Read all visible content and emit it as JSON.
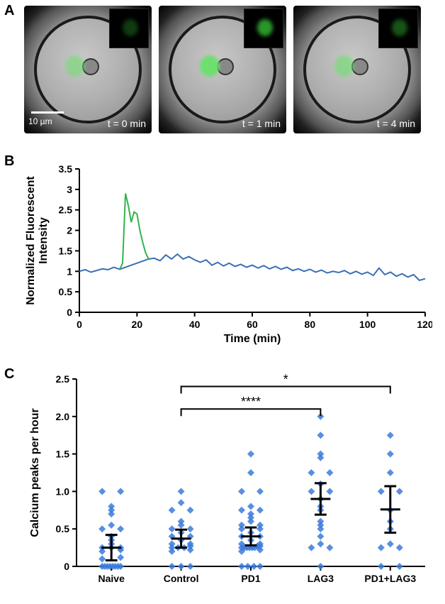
{
  "labels": {
    "A": "A",
    "B": "B",
    "C": "C"
  },
  "panelA": {
    "scale_label": "10 µm",
    "frames": [
      {
        "time_label": "t = 0 min",
        "green_opacity": 0.55,
        "inset_opacity": 0.35
      },
      {
        "time_label": "t = 1 min",
        "green_opacity": 0.95,
        "inset_opacity": 0.9
      },
      {
        "time_label": "t = 4 min",
        "green_opacity": 0.6,
        "inset_opacity": 0.5
      }
    ],
    "green_color": "#6be06b",
    "inset_green": "#2fa82f"
  },
  "panelB": {
    "type": "line",
    "xlabel": "Time (min)",
    "ylabel": "Normalized Fluorescent\nIntensity",
    "xlim": [
      0,
      120
    ],
    "ylim": [
      0,
      3.5
    ],
    "xticks": [
      0,
      20,
      40,
      60,
      80,
      100,
      120
    ],
    "yticks": [
      0,
      0.5,
      1,
      1.5,
      2,
      2.5,
      3,
      3.5
    ],
    "baseline_color": "#3b6fb6",
    "peak_color": "#31b44a",
    "line_width": 2,
    "background_color": "#ffffff",
    "baseline": [
      [
        0,
        1.0
      ],
      [
        2,
        1.04
      ],
      [
        4,
        0.98
      ],
      [
        6,
        1.02
      ],
      [
        8,
        1.06
      ],
      [
        10,
        1.04
      ],
      [
        12,
        1.1
      ],
      [
        14,
        1.05
      ],
      [
        24,
        1.3
      ],
      [
        26,
        1.32
      ],
      [
        28,
        1.26
      ],
      [
        30,
        1.4
      ],
      [
        32,
        1.3
      ],
      [
        34,
        1.42
      ],
      [
        36,
        1.3
      ],
      [
        38,
        1.36
      ],
      [
        40,
        1.28
      ],
      [
        42,
        1.22
      ],
      [
        44,
        1.28
      ],
      [
        46,
        1.15
      ],
      [
        48,
        1.22
      ],
      [
        50,
        1.13
      ],
      [
        52,
        1.2
      ],
      [
        54,
        1.12
      ],
      [
        56,
        1.17
      ],
      [
        58,
        1.1
      ],
      [
        60,
        1.15
      ],
      [
        62,
        1.08
      ],
      [
        64,
        1.14
      ],
      [
        66,
        1.06
      ],
      [
        68,
        1.12
      ],
      [
        70,
        1.05
      ],
      [
        72,
        1.1
      ],
      [
        74,
        1.02
      ],
      [
        76,
        1.06
      ],
      [
        78,
        1.0
      ],
      [
        80,
        1.05
      ],
      [
        82,
        0.98
      ],
      [
        84,
        1.03
      ],
      [
        86,
        0.96
      ],
      [
        88,
        1.0
      ],
      [
        90,
        0.97
      ],
      [
        92,
        1.02
      ],
      [
        94,
        0.94
      ],
      [
        96,
        1.0
      ],
      [
        98,
        0.93
      ],
      [
        100,
        0.98
      ],
      [
        102,
        0.9
      ],
      [
        104,
        1.08
      ],
      [
        106,
        0.92
      ],
      [
        108,
        0.98
      ],
      [
        110,
        0.88
      ],
      [
        112,
        0.94
      ],
      [
        114,
        0.86
      ],
      [
        116,
        0.92
      ],
      [
        118,
        0.78
      ],
      [
        120,
        0.82
      ]
    ],
    "peak": [
      [
        14,
        1.05
      ],
      [
        15,
        1.2
      ],
      [
        16,
        2.9
      ],
      [
        17,
        2.6
      ],
      [
        18,
        2.2
      ],
      [
        19,
        2.45
      ],
      [
        20,
        2.4
      ],
      [
        21,
        2.0
      ],
      [
        22,
        1.7
      ],
      [
        23,
        1.45
      ],
      [
        24,
        1.3
      ]
    ]
  },
  "panelC": {
    "type": "scatter-strip",
    "xlabel_categories": [
      "Naive",
      "Control",
      "PD1",
      "LAG3",
      "PD1+LAG3"
    ],
    "ylabel": "Calcium peaks per hour",
    "ylim": [
      0,
      2.5
    ],
    "yticks": [
      0,
      0.5,
      1.0,
      1.5,
      2.0,
      2.5
    ],
    "point_color": "#3a7bdc",
    "error_color": "#000000",
    "point_size": 5,
    "err_cap_width": 28,
    "significance": [
      {
        "from": 1,
        "to": 3,
        "label": "****",
        "y": 2.1
      },
      {
        "from": 1,
        "to": 4,
        "label": "*",
        "y": 2.4
      }
    ],
    "series": [
      {
        "mean": 0.25,
        "err": 0.17,
        "points": [
          0.0,
          0.0,
          0.0,
          0.0,
          0.0,
          0.0,
          0.0,
          0.0,
          0.1,
          0.12,
          0.2,
          0.22,
          0.25,
          0.25,
          0.25,
          0.3,
          0.35,
          0.4,
          0.5,
          0.5,
          0.55,
          0.7,
          0.75,
          0.8,
          1.0,
          1.0
        ]
      },
      {
        "mean": 0.37,
        "err": 0.12,
        "points": [
          0.0,
          0.0,
          0.0,
          0.2,
          0.22,
          0.25,
          0.25,
          0.25,
          0.27,
          0.3,
          0.3,
          0.35,
          0.4,
          0.4,
          0.45,
          0.5,
          0.5,
          0.55,
          0.6,
          0.75,
          0.75,
          0.85,
          1.0
        ]
      },
      {
        "mean": 0.4,
        "err": 0.12,
        "points": [
          0.0,
          0.0,
          0.0,
          0.0,
          0.2,
          0.22,
          0.25,
          0.25,
          0.25,
          0.25,
          0.25,
          0.25,
          0.27,
          0.27,
          0.3,
          0.3,
          0.35,
          0.4,
          0.4,
          0.45,
          0.5,
          0.5,
          0.55,
          0.55,
          0.6,
          0.65,
          0.7,
          0.75,
          0.75,
          0.8,
          1.0,
          1.0,
          1.25,
          1.5
        ]
      },
      {
        "mean": 0.9,
        "err": 0.21,
        "points": [
          0.0,
          0.25,
          0.25,
          0.3,
          0.4,
          0.5,
          0.55,
          0.6,
          0.75,
          0.8,
          0.9,
          1.0,
          1.0,
          1.1,
          1.25,
          1.25,
          1.45,
          1.5,
          1.75,
          2.0
        ]
      },
      {
        "mean": 0.76,
        "err": 0.31,
        "points": [
          0.0,
          0.0,
          0.25,
          0.25,
          0.3,
          0.5,
          0.6,
          0.75,
          1.0,
          1.0,
          1.25,
          1.5,
          1.75
        ]
      }
    ]
  }
}
